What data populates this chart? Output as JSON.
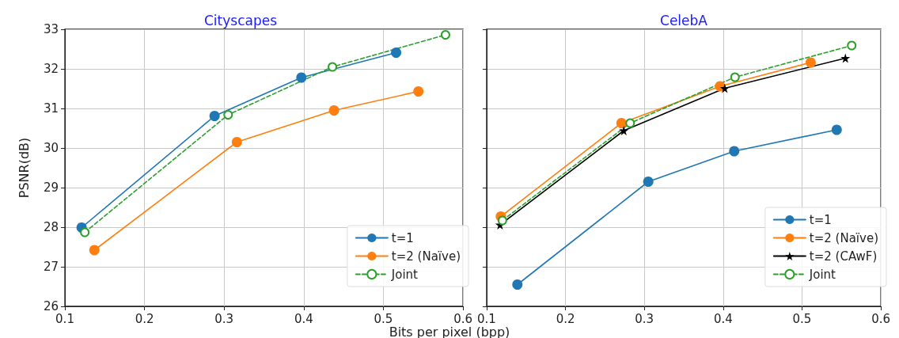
{
  "chart_data": [
    {
      "type": "line",
      "title": "Cityscapes",
      "xlabel": "Bits per pixel (bpp)",
      "ylabel": "PSNR(dB)",
      "xlim": [
        0.1,
        0.6
      ],
      "xticks": [
        0.1,
        0.2,
        0.3,
        0.4,
        0.5,
        0.6
      ],
      "ylim": [
        26,
        33
      ],
      "yticks": [
        26,
        27,
        28,
        29,
        30,
        31,
        32,
        33
      ],
      "grid": true,
      "legend": "bottom right",
      "series": [
        {
          "name": "t=1",
          "color": "#1f77b4",
          "marker": "circle",
          "line_style": "solid",
          "x": [
            0.121,
            0.288,
            0.397,
            0.516
          ],
          "values": [
            27.99,
            30.81,
            31.78,
            32.41
          ]
        },
        {
          "name": "t=2 (Naïve)",
          "color": "#ff7f0e",
          "marker": "circle",
          "line_style": "solid",
          "x": [
            0.137,
            0.316,
            0.438,
            0.544
          ],
          "values": [
            27.42,
            30.15,
            30.95,
            31.43
          ]
        },
        {
          "name": "Joint",
          "color": "#2ca02c",
          "marker": "circle",
          "line_style": "dashed",
          "x": [
            0.125,
            0.305,
            0.436,
            0.578
          ],
          "values": [
            27.87,
            30.84,
            32.05,
            32.86
          ]
        }
      ]
    },
    {
      "type": "line",
      "title": "CelebA",
      "xlim": [
        0.1,
        0.6
      ],
      "xticks": [
        0.1,
        0.2,
        0.3,
        0.4,
        0.5,
        0.6
      ],
      "ylim": [
        26,
        33
      ],
      "yticks": [
        26,
        27,
        28,
        29,
        30,
        31,
        32,
        33
      ],
      "grid": true,
      "legend": "bottom right",
      "tick_labels": "x",
      "series": [
        {
          "name": "t=1",
          "color": "#1f77b4",
          "marker": "circle",
          "line_style": "solid",
          "x": [
            0.139,
            0.305,
            0.414,
            0.544
          ],
          "values": [
            26.55,
            29.15,
            29.92,
            30.46
          ]
        },
        {
          "name": "t=2 (Naïve)",
          "color": "#ff7f0e",
          "marker": "circle",
          "line_style": "solid",
          "x": [
            0.118,
            0.271,
            0.396,
            0.511
          ],
          "values": [
            28.27,
            30.63,
            31.56,
            32.16
          ]
        },
        {
          "name": "t=2 (CAwF)",
          "color": "#000000",
          "marker": "star",
          "line_style": "solid",
          "x": [
            0.117,
            0.274,
            0.402,
            0.555
          ],
          "values": [
            28.06,
            30.44,
            31.51,
            32.27
          ]
        },
        {
          "name": "Joint",
          "color": "#2ca02c",
          "marker": "circle",
          "line_style": "dashed",
          "x": [
            0.12,
            0.282,
            0.415,
            0.563
          ],
          "values": [
            28.17,
            30.63,
            31.79,
            32.59
          ]
        }
      ]
    }
  ]
}
